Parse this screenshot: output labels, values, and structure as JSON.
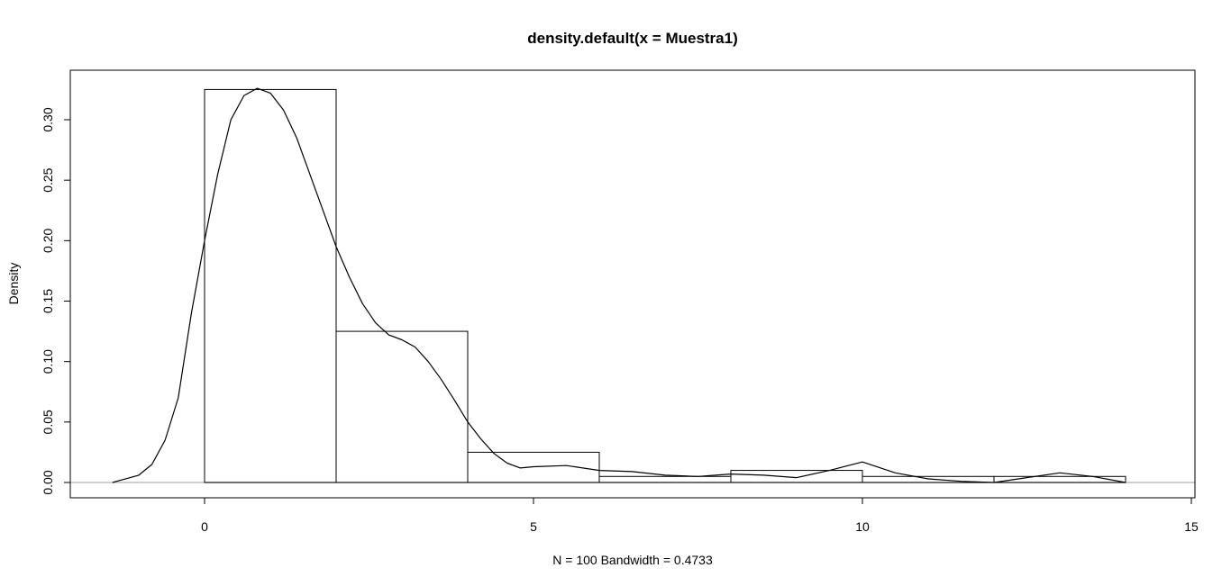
{
  "chart_data": {
    "type": "histogram-density",
    "title": "density.default(x = Muestra1)",
    "xlabel": "N = 100   Bandwidth = 0.4733",
    "ylabel": "Density",
    "xlim": [
      -2,
      15
    ],
    "ylim": [
      -0.012,
      0.34
    ],
    "x_ticks": [
      0,
      5,
      10,
      15
    ],
    "y_ticks": [
      0.0,
      0.05,
      0.1,
      0.15,
      0.2,
      0.25,
      0.3
    ],
    "y_tick_labels": [
      "0.00",
      "0.05",
      "0.10",
      "0.15",
      "0.20",
      "0.25",
      "0.30"
    ],
    "zero_line": true,
    "histogram": {
      "breaks": [
        0,
        2,
        4,
        6,
        8,
        10,
        12,
        14
      ],
      "density": [
        0.325,
        0.125,
        0.025,
        0.005,
        0.01,
        0.005,
        0.005
      ]
    },
    "density_curve": {
      "x": [
        -1.4,
        -1.0,
        -0.8,
        -0.6,
        -0.4,
        -0.2,
        0.0,
        0.2,
        0.4,
        0.6,
        0.8,
        1.0,
        1.2,
        1.4,
        1.6,
        1.8,
        2.0,
        2.2,
        2.4,
        2.6,
        2.8,
        3.0,
        3.2,
        3.4,
        3.6,
        3.8,
        4.0,
        4.2,
        4.4,
        4.6,
        4.8,
        5.0,
        5.5,
        6.0,
        6.5,
        7.0,
        7.5,
        8.0,
        8.5,
        9.0,
        9.5,
        10.0,
        10.5,
        11.0,
        11.5,
        12.0,
        12.5,
        13.0,
        13.5,
        14.0
      ],
      "y": [
        0.0,
        0.006,
        0.015,
        0.035,
        0.07,
        0.14,
        0.2,
        0.255,
        0.3,
        0.32,
        0.326,
        0.322,
        0.308,
        0.285,
        0.255,
        0.225,
        0.195,
        0.17,
        0.148,
        0.132,
        0.122,
        0.118,
        0.112,
        0.1,
        0.085,
        0.068,
        0.05,
        0.036,
        0.024,
        0.016,
        0.012,
        0.013,
        0.014,
        0.01,
        0.009,
        0.006,
        0.005,
        0.007,
        0.006,
        0.004,
        0.01,
        0.017,
        0.008,
        0.003,
        0.001,
        0.0,
        0.004,
        0.008,
        0.005,
        0.0
      ]
    }
  }
}
